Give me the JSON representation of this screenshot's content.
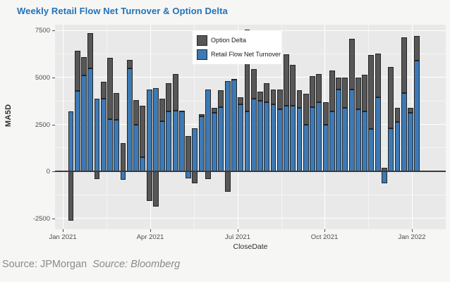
{
  "title": "Weekly Retail Flow Net Turnover & Option Delta",
  "legend": {
    "items": [
      {
        "label": "Option Delta",
        "color": "#575757"
      },
      {
        "label": "Retail Flow Net Turnover",
        "color": "#3d7ab5"
      }
    ]
  },
  "footer": {
    "source_left": "Source: JPMorgan",
    "source_right": "Source: Bloomberg"
  },
  "colors": {
    "title": "#2272b8",
    "panel_background": "#e9e9e9",
    "gridline": "#ffffff",
    "bar_border": "#242424",
    "option_delta": "#575757",
    "retail_flow": "#3d7ab5",
    "axis_text": "#4d4d4d",
    "source_text": "#8a8a8a"
  },
  "chart_data": {
    "type": "bar",
    "stacked": true,
    "title": "Weekly Retail Flow Net Turnover & Option Delta",
    "xlabel": "CloseDate",
    "ylabel": "MA5D",
    "ylim": [
      -3060,
      7810
    ],
    "y_ticks": [
      7500,
      5000,
      2500,
      0,
      -2500
    ],
    "x_tick_labels": [
      "Jan 2021",
      "Apr 2021",
      "Jul 2021",
      "Oct 2021",
      "Jan 2022"
    ],
    "grid": true,
    "legend_position": "top-center-inside",
    "x": [
      "2021-01-08",
      "2021-01-15",
      "2021-01-22",
      "2021-01-29",
      "2021-02-05",
      "2021-02-12",
      "2021-02-19",
      "2021-02-26",
      "2021-03-05",
      "2021-03-12",
      "2021-03-19",
      "2021-03-26",
      "2021-04-02",
      "2021-04-09",
      "2021-04-16",
      "2021-04-23",
      "2021-04-30",
      "2021-05-07",
      "2021-05-14",
      "2021-05-21",
      "2021-05-28",
      "2021-06-04",
      "2021-06-11",
      "2021-06-18",
      "2021-06-25",
      "2021-07-02",
      "2021-07-09",
      "2021-07-16",
      "2021-07-23",
      "2021-07-30",
      "2021-08-06",
      "2021-08-13",
      "2021-08-20",
      "2021-08-27",
      "2021-09-03",
      "2021-09-10",
      "2021-09-17",
      "2021-09-24",
      "2021-10-01",
      "2021-10-08",
      "2021-10-15",
      "2021-10-22",
      "2021-10-29",
      "2021-11-05",
      "2021-11-12",
      "2021-11-19",
      "2021-11-26",
      "2021-12-03",
      "2021-12-10",
      "2021-12-17",
      "2021-12-24",
      "2021-12-31",
      "2022-01-07",
      "2022-01-14"
    ],
    "series": [
      {
        "name": "Retail Flow Net Turnover",
        "color": "#3d7ab5",
        "values": [
          3200,
          4275,
          5100,
          5500,
          3875,
          3875,
          2775,
          2750,
          -440,
          5500,
          2500,
          750,
          4375,
          4440,
          2690,
          3190,
          3250,
          3190,
          -375,
          2310,
          2940,
          4375,
          3125,
          3440,
          4810,
          4900,
          3560,
          3190,
          3875,
          3750,
          3690,
          3560,
          3310,
          3500,
          3500,
          3375,
          2500,
          3440,
          3690,
          2500,
          3190,
          4375,
          3375,
          4375,
          3310,
          3190,
          2250,
          3940,
          -625,
          2310,
          2625,
          4190,
          3125,
          5890
        ]
      },
      {
        "name": "Option Delta",
        "color": "#575757",
        "values": [
          -2625,
          2150,
          1000,
          1875,
          -400,
          900,
          3285,
          1440,
          1525,
          440,
          1300,
          2750,
          -1575,
          -1875,
          1185,
          1500,
          1940,
          60,
          1875,
          -625,
          100,
          -400,
          250,
          870,
          -1060,
          40,
          380,
          4370,
          1565,
          500,
          1000,
          815,
          1065,
          2750,
          2190,
          935,
          1625,
          1620,
          1500,
          1190,
          2185,
          625,
          1625,
          2675,
          1690,
          1960,
          3940,
          2335,
          200,
          3250,
          750,
          2960,
          250,
          1320
        ]
      }
    ]
  }
}
